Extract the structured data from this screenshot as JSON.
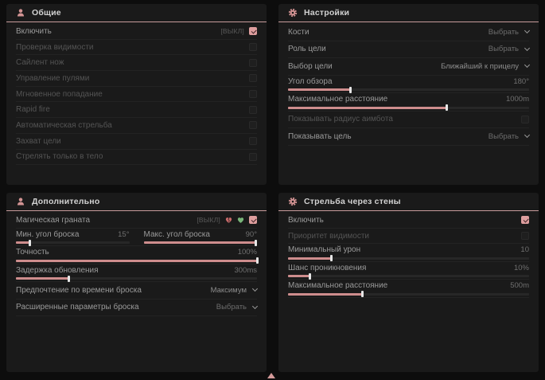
{
  "accent": "#ce8d8d",
  "panels": {
    "general": {
      "title": "Общие",
      "icon": "person-icon",
      "rows": [
        {
          "label": "Включить",
          "badge": "[ВЫКЛ]",
          "checked": true,
          "dim": false
        },
        {
          "label": "Проверка видимости",
          "checked": false,
          "dim": true
        },
        {
          "label": "Сайлент нож",
          "checked": false,
          "dim": true
        },
        {
          "label": "Управление пулями",
          "checked": false,
          "dim": true
        },
        {
          "label": "Мгновенное попадание",
          "checked": false,
          "dim": true
        },
        {
          "label": "Rapid fire",
          "checked": false,
          "dim": true
        },
        {
          "label": "Автоматическая стрельба",
          "checked": false,
          "dim": true
        },
        {
          "label": "Захват цели",
          "checked": false,
          "dim": true
        },
        {
          "label": "Стрелять только в тело",
          "checked": false,
          "dim": true
        }
      ]
    },
    "settings": {
      "title": "Настройки",
      "icon": "gear-icon",
      "bones": {
        "label": "Кости",
        "value": "Выбрать"
      },
      "target_role": {
        "label": "Роль цели",
        "value": "Выбрать"
      },
      "target_select": {
        "label": "Выбор цели",
        "value": "Ближайший к прицелу"
      },
      "fov": {
        "label": "Угол обзора",
        "value": "180°",
        "fill": 26
      },
      "max_distance": {
        "label": "Максимальное расстояние",
        "value": "1000m",
        "fill": 66
      },
      "show_radius": {
        "label": "Показывать радиус аимбота",
        "checked": false,
        "dim": true
      },
      "show_target": {
        "label": "Показывать цель",
        "value": "Выбрать"
      }
    },
    "additional": {
      "title": "Дополнительно",
      "icon": "person-icon",
      "magic_grenade": {
        "label": "Магическая граната",
        "badge": "[ВЫКЛ]",
        "icons": [
          "broken-heart-icon",
          "green-heart-icon"
        ],
        "checked": true
      },
      "min_angle": {
        "label": "Мин. угол броска",
        "value": "15°",
        "fill": 12
      },
      "max_angle": {
        "label": "Макс. угол броска",
        "value": "90°",
        "fill": 99
      },
      "accuracy": {
        "label": "Точность",
        "value": "100%",
        "fill": 100
      },
      "delay": {
        "label": "Задержка обновления",
        "value": "300ms",
        "fill": 22
      },
      "throw_time": {
        "label": "Предпочтение по времени броска",
        "value": "Максимум"
      },
      "advanced": {
        "label": "Расширенные параметры броска",
        "value": "Выбрать"
      }
    },
    "wallbang": {
      "title": "Стрельба через стены",
      "icon": "gear-icon",
      "enable": {
        "label": "Включить",
        "checked": true,
        "dim": false
      },
      "visibility": {
        "label": "Приоритет видимости",
        "checked": false,
        "dim": true
      },
      "min_damage": {
        "label": "Минимальный урон",
        "value": "10",
        "fill": 18
      },
      "pen_chance": {
        "label": "Шанс проникновения",
        "value": "10%",
        "fill": 9
      },
      "max_distance": {
        "label": "Максимальное расстояние",
        "value": "500m",
        "fill": 31
      }
    }
  },
  "footer": {
    "indicator": "scroll-up-indicator"
  }
}
